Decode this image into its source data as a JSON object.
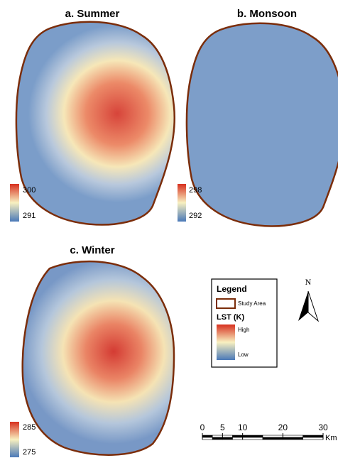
{
  "panels": [
    {
      "title": "a. Summer",
      "scale_max": 300,
      "scale_min": 291
    },
    {
      "title": "b. Monsoon",
      "scale_max": 298,
      "scale_min": 292
    },
    {
      "title": "c. Winter",
      "scale_max": 285,
      "scale_min": 275
    }
  ],
  "legend": {
    "title": "Legend",
    "study_area": "Study Area",
    "lst": "LST (K)",
    "high": "High",
    "low": "Low"
  },
  "north": "N",
  "scale_bar": {
    "ticks": [
      0,
      5,
      10,
      20,
      30
    ],
    "unit": "Km"
  }
}
